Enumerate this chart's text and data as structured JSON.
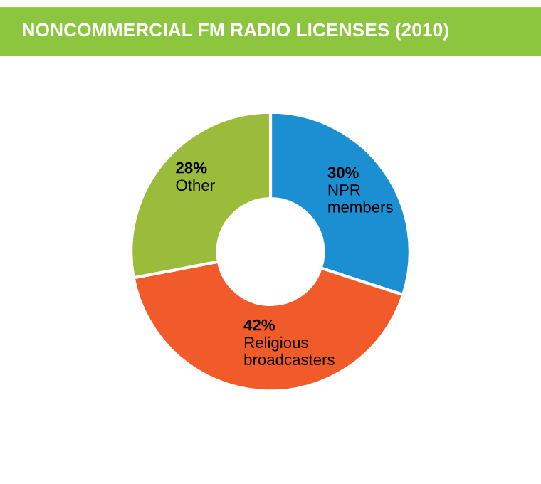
{
  "chart_data": {
    "type": "donut",
    "title": "NONCOMMERCIAL FM RADIO LICENSES (2010)",
    "categories": [
      "NPR members",
      "Religious broadcasters",
      "Other"
    ],
    "values": [
      30,
      42,
      28
    ],
    "colors": [
      "#1b8fd2",
      "#f15a29",
      "#9bbb3a"
    ],
    "value_labels": [
      "30%",
      "42%",
      "28%"
    ]
  }
}
